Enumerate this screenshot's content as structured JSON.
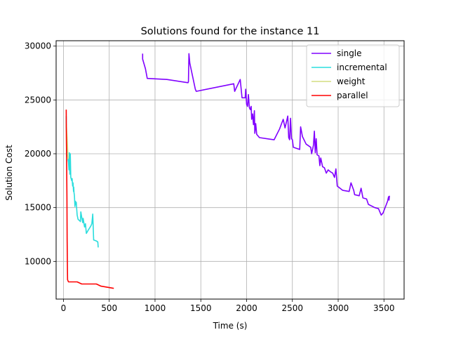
{
  "chart_data": {
    "type": "line",
    "title": "Solutions found for the instance 11",
    "xlabel": "Time (s)",
    "ylabel": "Solution Cost",
    "xlim": [
      -80,
      3720
    ],
    "ylim": [
      6500,
      30500
    ],
    "xticks": [
      0,
      500,
      1000,
      1500,
      2000,
      2500,
      3000,
      3500
    ],
    "yticks": [
      10000,
      15000,
      20000,
      25000,
      30000
    ],
    "grid": true,
    "legend_position": "top-right",
    "series": [
      {
        "name": "single",
        "color": "#8000ff",
        "points": [
          [
            865,
            29300
          ],
          [
            865,
            28800
          ],
          [
            895,
            27900
          ],
          [
            915,
            27000
          ],
          [
            1130,
            26900
          ],
          [
            1360,
            26600
          ],
          [
            1365,
            26700
          ],
          [
            1370,
            29300
          ],
          [
            1380,
            28400
          ],
          [
            1440,
            26000
          ],
          [
            1450,
            25800
          ],
          [
            1860,
            26500
          ],
          [
            1870,
            25800
          ],
          [
            1930,
            26900
          ],
          [
            1950,
            25200
          ],
          [
            1985,
            25200
          ],
          [
            1990,
            26000
          ],
          [
            2000,
            24600
          ],
          [
            2010,
            24400
          ],
          [
            2020,
            25500
          ],
          [
            2030,
            24300
          ],
          [
            2040,
            24100
          ],
          [
            2050,
            24400
          ],
          [
            2055,
            23200
          ],
          [
            2065,
            23700
          ],
          [
            2075,
            22700
          ],
          [
            2085,
            24000
          ],
          [
            2090,
            21900
          ],
          [
            2100,
            22800
          ],
          [
            2110,
            21800
          ],
          [
            2140,
            21500
          ],
          [
            2300,
            21300
          ],
          [
            2360,
            22300
          ],
          [
            2400,
            23200
          ],
          [
            2420,
            22400
          ],
          [
            2450,
            23500
          ],
          [
            2460,
            21500
          ],
          [
            2470,
            21300
          ],
          [
            2480,
            23300
          ],
          [
            2490,
            21400
          ],
          [
            2500,
            21300
          ],
          [
            2510,
            20600
          ],
          [
            2580,
            20400
          ],
          [
            2590,
            22500
          ],
          [
            2610,
            21600
          ],
          [
            2650,
            20900
          ],
          [
            2700,
            20600
          ],
          [
            2710,
            20000
          ],
          [
            2720,
            20400
          ],
          [
            2730,
            20800
          ],
          [
            2740,
            22100
          ],
          [
            2750,
            20100
          ],
          [
            2760,
            21400
          ],
          [
            2770,
            19900
          ],
          [
            2790,
            19800
          ],
          [
            2800,
            18900
          ],
          [
            2810,
            19600
          ],
          [
            2830,
            18800
          ],
          [
            2850,
            18700
          ],
          [
            2870,
            18200
          ],
          [
            2890,
            18500
          ],
          [
            2920,
            18300
          ],
          [
            2940,
            18200
          ],
          [
            2960,
            17800
          ],
          [
            2975,
            18600
          ],
          [
            2990,
            17000
          ],
          [
            3050,
            16600
          ],
          [
            3120,
            16500
          ],
          [
            3140,
            17300
          ],
          [
            3170,
            16600
          ],
          [
            3180,
            16200
          ],
          [
            3230,
            16100
          ],
          [
            3250,
            16800
          ],
          [
            3270,
            15900
          ],
          [
            3310,
            15800
          ],
          [
            3330,
            15300
          ],
          [
            3400,
            15000
          ],
          [
            3440,
            14900
          ],
          [
            3470,
            14300
          ],
          [
            3490,
            14500
          ],
          [
            3540,
            15600
          ],
          [
            3550,
            16000
          ],
          [
            3555,
            15700
          ],
          [
            3560,
            16100
          ]
        ]
      },
      {
        "name": "incremental",
        "color": "#2adddd",
        "points": [
          [
            30,
            23500
          ],
          [
            30,
            22500
          ],
          [
            45,
            19800
          ],
          [
            55,
            19200
          ],
          [
            60,
            18500
          ],
          [
            65,
            20100
          ],
          [
            70,
            18100
          ],
          [
            75,
            20000
          ],
          [
            80,
            17800
          ],
          [
            90,
            17500
          ],
          [
            95,
            17700
          ],
          [
            100,
            17000
          ],
          [
            105,
            17300
          ],
          [
            110,
            16500
          ],
          [
            112,
            16900
          ],
          [
            115,
            16400
          ],
          [
            120,
            16100
          ],
          [
            125,
            15100
          ],
          [
            130,
            15600
          ],
          [
            135,
            15300
          ],
          [
            140,
            15500
          ],
          [
            145,
            14800
          ],
          [
            150,
            14300
          ],
          [
            160,
            13900
          ],
          [
            175,
            13800
          ],
          [
            185,
            13700
          ],
          [
            190,
            14600
          ],
          [
            200,
            14100
          ],
          [
            210,
            13600
          ],
          [
            215,
            14000
          ],
          [
            230,
            13200
          ],
          [
            240,
            13500
          ],
          [
            250,
            12600
          ],
          [
            270,
            12900
          ],
          [
            300,
            13300
          ],
          [
            310,
            13500
          ],
          [
            320,
            14400
          ],
          [
            330,
            12000
          ],
          [
            360,
            11900
          ],
          [
            375,
            11800
          ],
          [
            380,
            11300
          ]
        ]
      },
      {
        "name": "weight",
        "color": "#d4dd80",
        "points": [
          [
            30,
            22800
          ],
          [
            40,
            21500
          ],
          [
            50,
            19500
          ]
        ]
      },
      {
        "name": "parallel",
        "color": "#ff0000",
        "points": [
          [
            30,
            24100
          ],
          [
            32,
            21500
          ],
          [
            35,
            19200
          ],
          [
            38,
            16000
          ],
          [
            40,
            12000
          ],
          [
            43,
            9500
          ],
          [
            45,
            8300
          ],
          [
            55,
            8100
          ],
          [
            80,
            8100
          ],
          [
            150,
            8100
          ],
          [
            200,
            7900
          ],
          [
            360,
            7900
          ],
          [
            410,
            7700
          ],
          [
            550,
            7500
          ]
        ]
      }
    ]
  }
}
